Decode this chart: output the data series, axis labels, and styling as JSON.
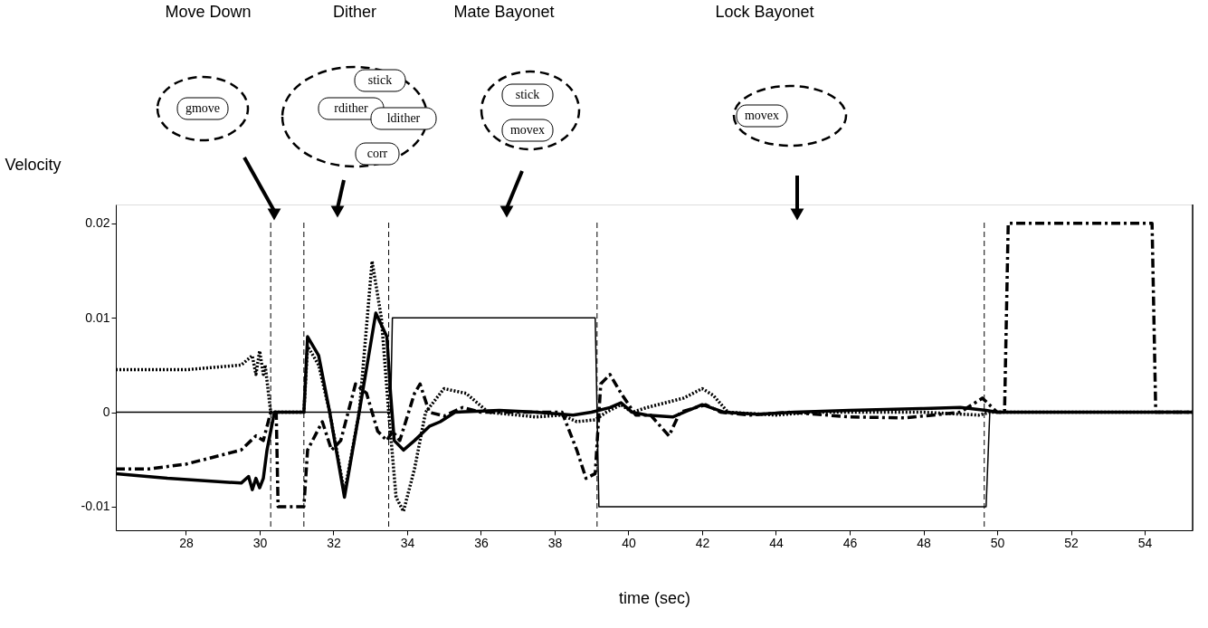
{
  "chart_data": {
    "type": "line",
    "ylabel": "Velocity",
    "xlabel": "time (sec)",
    "xlim": [
      26.1,
      55.3
    ],
    "xticks": [
      28,
      30,
      32,
      34,
      36,
      38,
      40,
      42,
      44,
      46,
      48,
      50,
      52,
      54
    ],
    "ylim": [
      -0.0125,
      0.022
    ],
    "yticks": [
      -0.01,
      0,
      0.01,
      0.02
    ],
    "grid": false,
    "marker": "none",
    "ref_lines": [
      {
        "axis": "x",
        "value": 30.3,
        "line_style": "dashed",
        "color": "#000000"
      },
      {
        "axis": "x",
        "value": 31.2,
        "line_style": "dashed",
        "color": "#000000"
      },
      {
        "axis": "x",
        "value": 33.5,
        "line_style": "dashed",
        "color": "#000000"
      },
      {
        "axis": "x",
        "value": 39.15,
        "line_style": "dashed",
        "color": "#000000"
      },
      {
        "axis": "x",
        "value": 49.65,
        "line_style": "dashed",
        "color": "#000000"
      }
    ],
    "annotations": [
      "Move Down",
      "Dither",
      "Mate Bayonet",
      "Lock Bayonet",
      "gmove",
      "rdither",
      "stick",
      "ldither",
      "corr",
      "stick",
      "movex",
      "movex"
    ],
    "series": [
      {
        "color": "#000000",
        "line_style": "solid",
        "x": [
          26.1,
          33.55,
          33.6,
          39.1,
          39.2,
          49.7,
          49.8,
          55.3
        ],
        "values": [
          0,
          0,
          0.01,
          0.01,
          -0.01,
          -0.01,
          0,
          0
        ]
      },
      {
        "color": "#000000",
        "line_style": "solid",
        "x": [
          26.1,
          27.5,
          29.5,
          29.7,
          29.8,
          29.9,
          30.0,
          30.1,
          30.2,
          30.4,
          31.2,
          31.3,
          31.6,
          31.9,
          32.3,
          32.7,
          33.15,
          33.45,
          33.55,
          33.65,
          33.9,
          34.2,
          34.6,
          34.9,
          35.3,
          36.5,
          37.5,
          38.5,
          39.0,
          39.5,
          39.8,
          40.1,
          40.5,
          41.2,
          42.0,
          42.6,
          43.5,
          44.5,
          46.0,
          48.0,
          49.0,
          49.7,
          50.0,
          55.3
        ],
        "values": [
          -0.0065,
          -0.007,
          -0.0075,
          -0.0068,
          -0.0082,
          -0.007,
          -0.008,
          -0.007,
          -0.004,
          0,
          0,
          0.008,
          0.006,
          0,
          -0.009,
          0,
          0.0105,
          0.008,
          0.002,
          -0.003,
          -0.004,
          -0.003,
          -0.0015,
          -0.001,
          0,
          0.0002,
          0,
          -0.0003,
          0,
          0.0005,
          0.001,
          0,
          -0.0003,
          -0.0005,
          0.0008,
          0,
          -0.0002,
          0,
          0.0002,
          0.0004,
          0.0005,
          0.0002,
          0,
          0
        ]
      },
      {
        "color": "#000000",
        "line_style": "dotted",
        "x": [
          26.1,
          28.0,
          29.5,
          29.8,
          29.9,
          30.0,
          30.1,
          30.15,
          30.3,
          31.2,
          31.3,
          31.6,
          31.9,
          32.3,
          32.7,
          33.05,
          33.3,
          33.5,
          33.7,
          33.9,
          34.2,
          34.5,
          35.0,
          35.6,
          36.2,
          37.0,
          37.5,
          38.2,
          38.6,
          39.1,
          39.4,
          39.8,
          40.1,
          40.5,
          41.5,
          42.0,
          42.3,
          42.7,
          44.0,
          45.0,
          48.0,
          49.5,
          49.8,
          55.3
        ],
        "values": [
          0.0045,
          0.0045,
          0.005,
          0.006,
          0.004,
          0.0065,
          0.004,
          0.005,
          0,
          0,
          0.007,
          0.005,
          0,
          -0.0085,
          0,
          0.016,
          0.01,
          0,
          -0.009,
          -0.0105,
          -0.006,
          0,
          0.0025,
          0.002,
          0,
          -0.0003,
          -0.0005,
          -0.0003,
          -0.001,
          -0.0008,
          0,
          0.0008,
          0,
          0.0005,
          0.0015,
          0.0025,
          0.0018,
          0,
          -0.0003,
          0,
          0,
          -0.0003,
          0,
          0
        ]
      },
      {
        "color": "#000000",
        "line_style": "dashdot",
        "x": [
          26.1,
          27.0,
          28.0,
          29.5,
          29.9,
          30.1,
          30.3,
          30.45,
          30.5,
          31.2,
          31.3,
          31.7,
          31.95,
          32.2,
          32.6,
          32.9,
          33.2,
          33.45,
          33.6,
          33.8,
          34.2,
          34.35,
          34.6,
          35.0,
          35.5,
          36.0,
          38.2,
          38.6,
          38.85,
          39.1,
          39.25,
          39.5,
          39.8,
          40.2,
          40.6,
          41.1,
          41.4,
          42.1,
          42.5,
          43.3,
          44.4,
          46.0,
          47.5,
          49.0,
          49.6,
          50.0,
          50.2,
          50.3,
          54.2,
          54.3,
          55.3
        ],
        "values": [
          -0.006,
          -0.006,
          -0.0055,
          -0.004,
          -0.0025,
          -0.003,
          0,
          0,
          -0.01,
          -0.01,
          -0.004,
          -0.001,
          -0.004,
          -0.003,
          0.003,
          0.002,
          -0.002,
          -0.003,
          -0.002,
          -0.003,
          0.002,
          0.003,
          0,
          -0.0004,
          0.0005,
          0,
          0,
          -0.004,
          -0.007,
          -0.0065,
          0.003,
          0.004,
          0.002,
          -0.0003,
          -0.0003,
          -0.0025,
          0,
          0.0008,
          0,
          -0.0003,
          0,
          -0.0005,
          -0.0006,
          0,
          0.0015,
          0,
          0,
          0.02,
          0.02,
          0,
          0
        ]
      }
    ]
  }
}
